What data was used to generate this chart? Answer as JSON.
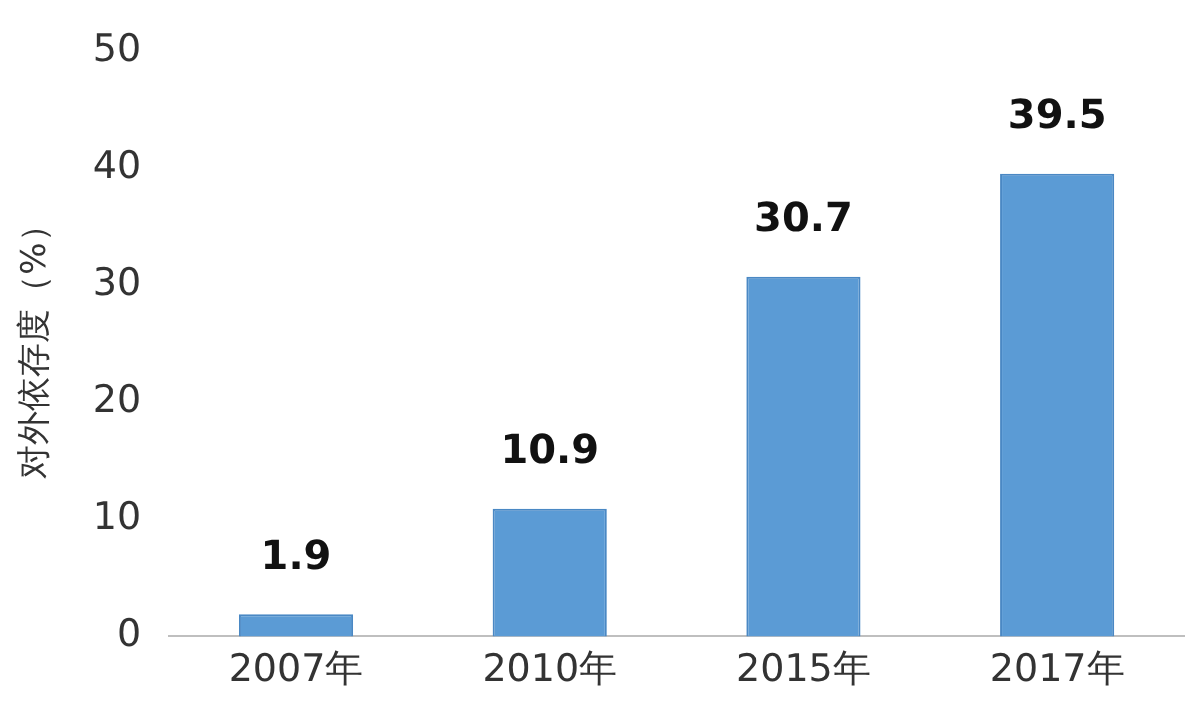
{
  "chart_data": {
    "type": "bar",
    "ylabel": "对外依存度（%）",
    "categories": [
      "2007年",
      "2010年",
      "2015年",
      "2017年"
    ],
    "values": [
      1.9,
      10.9,
      30.7,
      39.5
    ],
    "color": "#5b9bd5",
    "ylim": [
      0,
      50
    ],
    "yticks": [
      0,
      10,
      20,
      30,
      40,
      50
    ],
    "grid": false,
    "legend": false,
    "data_labels": true
  }
}
